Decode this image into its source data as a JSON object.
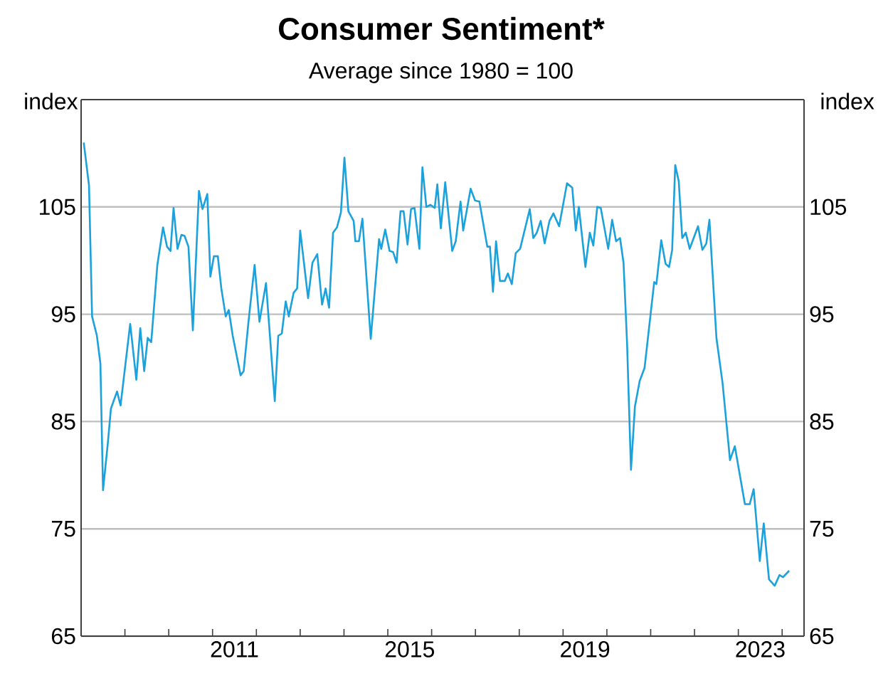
{
  "chart_data": {
    "type": "line",
    "title": "Consumer Sentiment*",
    "subtitle": "Average since 1980 = 100",
    "ylabel": "index",
    "y2label": "index",
    "x": [
      2008.06,
      2008.18,
      2008.25,
      2008.36,
      2008.44,
      2008.5,
      2008.61,
      2008.68,
      2008.82,
      2008.9,
      2009.12,
      2009.26,
      2009.35,
      2009.44,
      2009.52,
      2009.6,
      2009.74,
      2009.87,
      2009.96,
      2010.04,
      2010.11,
      2010.2,
      2010.29,
      2010.36,
      2010.45,
      2010.55,
      2010.69,
      2010.77,
      2010.88,
      2010.95,
      2011.03,
      2011.12,
      2011.2,
      2011.3,
      2011.37,
      2011.46,
      2011.64,
      2011.71,
      2011.82,
      2011.96,
      2012.07,
      2012.22,
      2012.42,
      2012.5,
      2012.58,
      2012.67,
      2012.74,
      2012.85,
      2012.93,
      2013.0,
      2013.18,
      2013.28,
      2013.39,
      2013.5,
      2013.58,
      2013.66,
      2013.75,
      2013.84,
      2013.93,
      2014.01,
      2014.1,
      2014.22,
      2014.26,
      2014.34,
      2014.42,
      2014.61,
      2014.8,
      2014.85,
      2014.94,
      2015.04,
      2015.12,
      2015.2,
      2015.29,
      2015.36,
      2015.45,
      2015.53,
      2015.61,
      2015.72,
      2015.79,
      2015.88,
      2015.97,
      2016.07,
      2016.13,
      2016.21,
      2016.31,
      2016.47,
      2016.55,
      2016.66,
      2016.72,
      2016.89,
      2016.99,
      2017.09,
      2017.27,
      2017.33,
      2017.4,
      2017.47,
      2017.56,
      2017.67,
      2017.74,
      2017.83,
      2017.92,
      2018.02,
      2018.24,
      2018.32,
      2018.4,
      2018.49,
      2018.58,
      2018.69,
      2018.78,
      2018.91,
      2019.09,
      2019.21,
      2019.29,
      2019.36,
      2019.51,
      2019.61,
      2019.69,
      2019.78,
      2019.86,
      2020.03,
      2020.12,
      2020.21,
      2020.3,
      2020.38,
      2020.46,
      2020.55,
      2020.64,
      2020.75,
      2020.86,
      2021.08,
      2021.13,
      2021.24,
      2021.34,
      2021.42,
      2021.49,
      2021.56,
      2021.64,
      2021.72,
      2021.8,
      2021.89,
      2021.99,
      2022.08,
      2022.18,
      2022.27,
      2022.34,
      2022.5,
      2022.64,
      2022.81,
      2022.92,
      2023.15,
      2023.26,
      2023.35,
      2023.49,
      2023.58,
      2023.7,
      2023.83,
      2023.94,
      2024.02,
      2024.16
    ],
    "series": [
      {
        "color": "#1ba1db",
        "values": [
          111.0,
          107.0,
          94.8,
          93.0,
          90.4,
          78.6,
          83.0,
          86.2,
          87.8,
          86.5,
          94.1,
          88.9,
          93.7,
          89.7,
          92.8,
          92.4,
          99.6,
          103.1,
          101.3,
          100.9,
          104.9,
          101.1,
          102.4,
          102.3,
          101.3,
          93.5,
          106.5,
          104.8,
          106.2,
          98.5,
          100.4,
          100.4,
          97.4,
          94.8,
          95.4,
          93.0,
          89.3,
          89.7,
          94.3,
          99.6,
          94.3,
          97.9,
          86.9,
          93.0,
          93.2,
          96.2,
          94.8,
          97.0,
          97.4,
          102.8,
          96.5,
          99.8,
          100.6,
          95.9,
          97.4,
          95.6,
          102.6,
          103.1,
          104.5,
          109.6,
          104.6,
          103.7,
          101.8,
          101.8,
          103.9,
          92.7,
          102.0,
          101.1,
          102.9,
          100.9,
          100.8,
          99.8,
          104.6,
          104.6,
          101.5,
          104.8,
          104.9,
          101.1,
          108.7,
          105.0,
          105.2,
          104.9,
          107.1,
          103.0,
          107.3,
          100.9,
          101.8,
          105.5,
          102.8,
          106.7,
          105.6,
          105.5,
          101.3,
          101.3,
          97.1,
          101.8,
          98.1,
          98.1,
          98.8,
          97.8,
          100.7,
          101.1,
          104.8,
          102.1,
          102.6,
          103.7,
          101.6,
          103.7,
          104.4,
          103.2,
          107.2,
          106.8,
          102.8,
          105.0,
          99.4,
          102.6,
          101.4,
          105.0,
          104.9,
          101.1,
          103.8,
          101.8,
          102.1,
          99.8,
          92.4,
          80.5,
          86.4,
          88.8,
          90.0,
          98.0,
          97.8,
          101.9,
          99.7,
          99.4,
          101.0,
          108.9,
          107.4,
          102.1,
          102.6,
          101.1,
          102.2,
          103.2,
          101.0,
          101.6,
          103.8,
          92.8,
          88.6,
          81.4,
          82.7,
          77.3,
          77.3,
          78.7,
          72.0,
          75.5,
          70.3,
          69.7,
          70.7,
          70.5,
          71.1
        ]
      }
    ],
    "xlim": [
      2008,
      2024.5
    ],
    "xticks": [
      {
        "value": 2009,
        "label": null
      },
      {
        "value": 2010,
        "label": null
      },
      {
        "value": 2011,
        "label": null
      },
      {
        "value": 2012,
        "label": null
      },
      {
        "value": 2013,
        "label": null
      },
      {
        "value": 2014,
        "label": null
      },
      {
        "value": 2015,
        "label": null
      },
      {
        "value": 2016,
        "label": null
      },
      {
        "value": 2017,
        "label": null
      },
      {
        "value": 2018,
        "label": null
      },
      {
        "value": 2019,
        "label": null
      },
      {
        "value": 2020,
        "label": null
      },
      {
        "value": 2021,
        "label": null
      },
      {
        "value": 2022,
        "label": null
      },
      {
        "value": 2023,
        "label": null
      },
      {
        "value": 2024,
        "label": null
      },
      {
        "value": 2011.5,
        "label": "2011"
      },
      {
        "value": 2015.5,
        "label": "2015"
      },
      {
        "value": 2019.5,
        "label": "2019"
      },
      {
        "value": 2023.5,
        "label": "2023"
      }
    ],
    "ylim": [
      65,
      115
    ],
    "yticks": [
      65,
      75,
      85,
      95,
      105
    ],
    "y2lim": [
      65,
      115
    ],
    "y2ticks": [
      65,
      75,
      85,
      95,
      105
    ],
    "grid": "y",
    "marker": "none",
    "line_style": "solid"
  }
}
